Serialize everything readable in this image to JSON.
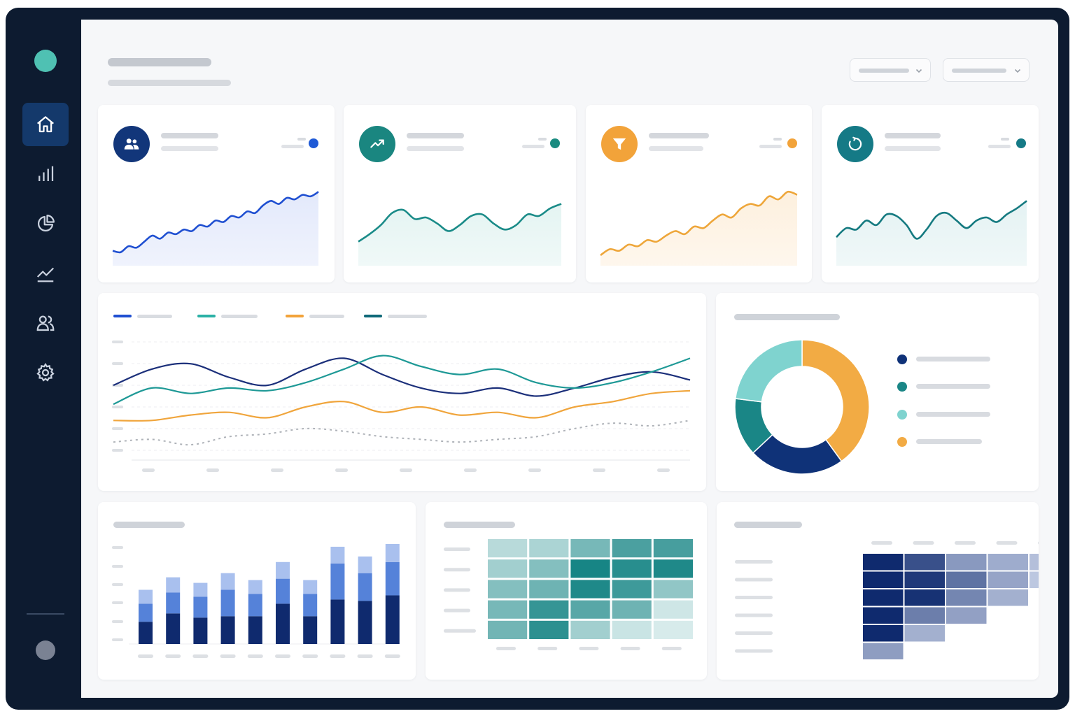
{
  "sidebar": {
    "items": [
      {
        "name": "home",
        "icon": "home-icon",
        "active": true
      },
      {
        "name": "analytics",
        "icon": "bar-chart-icon",
        "active": false
      },
      {
        "name": "reports",
        "icon": "pie-chart-icon",
        "active": false
      },
      {
        "name": "trends",
        "icon": "trend-line-icon",
        "active": false
      },
      {
        "name": "users",
        "icon": "users-icon",
        "active": false
      },
      {
        "name": "settings",
        "icon": "gear-icon",
        "active": false
      }
    ]
  },
  "colors": {
    "sidebar_bg": "#0d1b30",
    "active_nav": "#14396b",
    "blue": "#1f4fd1",
    "teal": "#1a8b8c",
    "orange": "#f2a33a",
    "dark_teal": "#157a86",
    "navy": "#13307a",
    "light_teal": "#7fd3cf"
  },
  "kpi_cards": [
    {
      "icon": "users-icon",
      "color": "#12367a",
      "dot_color": "#1f5ad6",
      "line_color": "#1f4fd1",
      "fill_color": "#e3e9fb",
      "trend": [
        18,
        16,
        24,
        22,
        30,
        38,
        34,
        42,
        40,
        46,
        44,
        52,
        50,
        58,
        56,
        64,
        62,
        70,
        68,
        78,
        84,
        80,
        88,
        86,
        92,
        90,
        96
      ]
    },
    {
      "icon": "trend-up-icon",
      "color": "#1a8680",
      "dot_color": "#1a8b80",
      "line_color": "#1a8b88",
      "fill_color": "#e4f4f2",
      "trend": [
        30,
        40,
        52,
        68,
        72,
        60,
        62,
        54,
        44,
        52,
        64,
        66,
        54,
        46,
        52,
        66,
        64,
        74,
        80
      ]
    },
    {
      "icon": "funnel-icon",
      "color": "#f2a33a",
      "dot_color": "#f2a33a",
      "line_color": "#eea63a",
      "fill_color": "#fdf0de",
      "trend": [
        12,
        20,
        18,
        26,
        24,
        32,
        30,
        38,
        44,
        40,
        50,
        48,
        58,
        66,
        62,
        74,
        80,
        78,
        90,
        86,
        96,
        92
      ]
    },
    {
      "icon": "refresh-icon",
      "color": "#157a86",
      "dot_color": "#157a86",
      "line_color": "#157a80",
      "fill_color": "#e4f2f3",
      "trend": [
        36,
        48,
        46,
        58,
        52,
        66,
        64,
        52,
        34,
        46,
        64,
        68,
        58,
        48,
        58,
        62,
        56,
        66,
        74,
        84
      ]
    }
  ],
  "chart_data": [
    {
      "type": "line",
      "series": [
        {
          "color": "#1b2f7a",
          "values": [
            60,
            72,
            76,
            66,
            60,
            72,
            80,
            68,
            58,
            54,
            58,
            52,
            58,
            66,
            70,
            64
          ]
        },
        {
          "color": "#1e9996",
          "values": [
            46,
            58,
            54,
            58,
            56,
            62,
            72,
            82,
            74,
            68,
            72,
            62,
            58,
            62,
            70,
            80
          ]
        },
        {
          "color": "#f0a53c",
          "values": [
            34,
            34,
            38,
            40,
            36,
            44,
            48,
            40,
            44,
            38,
            40,
            36,
            44,
            48,
            54,
            56
          ]
        },
        {
          "color": "#aeb2b8",
          "dashed": true,
          "values": [
            18,
            20,
            16,
            22,
            24,
            28,
            26,
            22,
            20,
            18,
            20,
            22,
            28,
            32,
            30,
            34
          ]
        }
      ],
      "ylim": [
        0,
        100
      ]
    },
    {
      "type": "pie",
      "values": [
        40,
        23,
        14,
        23
      ],
      "colors": [
        "#0f3278",
        "#1a8686",
        "#7fd3cf",
        "#f2ab44"
      ]
    },
    {
      "type": "bar",
      "stacked": true,
      "series": [
        {
          "color": "#0f2a6e",
          "values": [
            32,
            44,
            38,
            40,
            40,
            58,
            40,
            64,
            62,
            70
          ]
        },
        {
          "color": "#5582d9",
          "values": [
            26,
            30,
            30,
            38,
            32,
            36,
            32,
            52,
            40,
            48
          ]
        },
        {
          "color": "#a9c0ee",
          "values": [
            20,
            22,
            20,
            24,
            20,
            24,
            20,
            24,
            24,
            26
          ]
        }
      ],
      "ylim": [
        0,
        150
      ]
    },
    {
      "type": "heatmap",
      "rows": 5,
      "cols": 5,
      "values": [
        [
          0.22,
          0.28,
          0.52,
          0.72,
          0.74
        ],
        [
          0.32,
          0.46,
          0.96,
          0.88,
          0.92
        ],
        [
          0.46,
          0.56,
          0.92,
          0.78,
          0.4
        ],
        [
          0.52,
          0.82,
          0.66,
          0.56,
          0.12
        ],
        [
          0.54,
          0.86,
          0.32,
          0.14,
          0.08
        ]
      ],
      "color": "#0e8080"
    },
    {
      "type": "heatmap",
      "shape": "cohort",
      "rows": 6,
      "values": [
        [
          1.0,
          0.8,
          0.42,
          0.32,
          0.22,
          0.14
        ],
        [
          1.0,
          0.92,
          0.62,
          0.36,
          0.18
        ],
        [
          1.0,
          0.96,
          0.52,
          0.3
        ],
        [
          1.0,
          0.56,
          0.38
        ],
        [
          1.0,
          0.3
        ],
        [
          0.4
        ]
      ],
      "color": "#0f2a6e"
    }
  ]
}
